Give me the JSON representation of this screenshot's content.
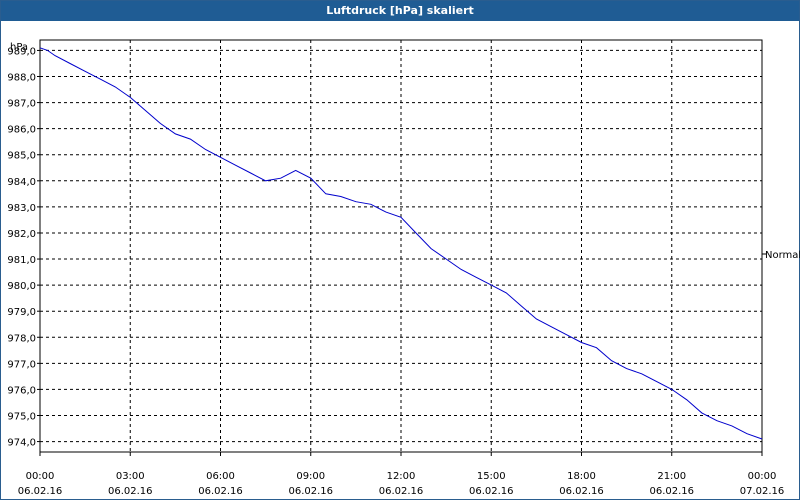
{
  "window": {
    "title": "Luftdruck [hPa] skaliert"
  },
  "chart_data": {
    "type": "line",
    "title": "Luftdruck [hPa] skaliert",
    "ylabel": "hPa",
    "xlabel": "",
    "ylim": [
      973.6,
      989.4
    ],
    "xlim": [
      0,
      24
    ],
    "grid": true,
    "legend_position": "right",
    "y_ticks": [
      {
        "value": 974,
        "label": "974,0"
      },
      {
        "value": 975,
        "label": "975,0"
      },
      {
        "value": 976,
        "label": "976,0"
      },
      {
        "value": 977,
        "label": "977,0"
      },
      {
        "value": 978,
        "label": "978,0"
      },
      {
        "value": 979,
        "label": "979,0"
      },
      {
        "value": 980,
        "label": "980,0"
      },
      {
        "value": 981,
        "label": "981,0"
      },
      {
        "value": 982,
        "label": "982,0"
      },
      {
        "value": 983,
        "label": "983,0"
      },
      {
        "value": 984,
        "label": "984,0"
      },
      {
        "value": 985,
        "label": "985,0"
      },
      {
        "value": 986,
        "label": "986,0"
      },
      {
        "value": 987,
        "label": "987,0"
      },
      {
        "value": 988,
        "label": "988,0"
      },
      {
        "value": 989,
        "label": "989,0"
      }
    ],
    "x_ticks": [
      {
        "value": 0,
        "time": "00:00",
        "date": "06.02.16"
      },
      {
        "value": 3,
        "time": "03:00",
        "date": "06.02.16"
      },
      {
        "value": 6,
        "time": "06:00",
        "date": "06.02.16"
      },
      {
        "value": 9,
        "time": "09:00",
        "date": "06.02.16"
      },
      {
        "value": 12,
        "time": "12:00",
        "date": "06.02.16"
      },
      {
        "value": 15,
        "time": "15:00",
        "date": "06.02.16"
      },
      {
        "value": 18,
        "time": "18:00",
        "date": "06.02.16"
      },
      {
        "value": 21,
        "time": "21:00",
        "date": "06.02.16"
      },
      {
        "value": 24,
        "time": "00:00",
        "date": "07.02.16"
      }
    ],
    "series": [
      {
        "name": "Normal",
        "color": "#0000cc",
        "x": [
          0,
          0.25,
          0.5,
          1,
          1.5,
          2,
          2.5,
          3,
          3.5,
          4,
          4.5,
          5,
          5.5,
          6,
          6.5,
          7,
          7.5,
          8,
          8.5,
          9,
          9.5,
          10,
          10.5,
          11,
          11.5,
          12,
          12.5,
          13,
          13.5,
          14,
          14.5,
          15,
          15.5,
          16,
          16.5,
          17,
          17.5,
          18,
          18.5,
          19,
          19.5,
          20,
          20.5,
          21,
          21.5,
          22,
          22.5,
          23,
          23.5,
          24
        ],
        "y": [
          989.1,
          989.0,
          988.8,
          988.5,
          988.2,
          987.9,
          987.6,
          987.2,
          986.7,
          986.2,
          985.8,
          985.6,
          985.2,
          984.9,
          984.6,
          984.3,
          984.0,
          984.1,
          984.4,
          984.1,
          983.5,
          983.4,
          983.2,
          983.1,
          982.8,
          982.6,
          982.0,
          981.4,
          981.0,
          980.6,
          980.3,
          980.0,
          979.7,
          979.2,
          978.7,
          978.4,
          978.1,
          977.8,
          977.6,
          977.1,
          976.8,
          976.6,
          976.3,
          976.0,
          975.6,
          975.1,
          974.8,
          974.6,
          974.3,
          974.1
        ]
      }
    ]
  }
}
